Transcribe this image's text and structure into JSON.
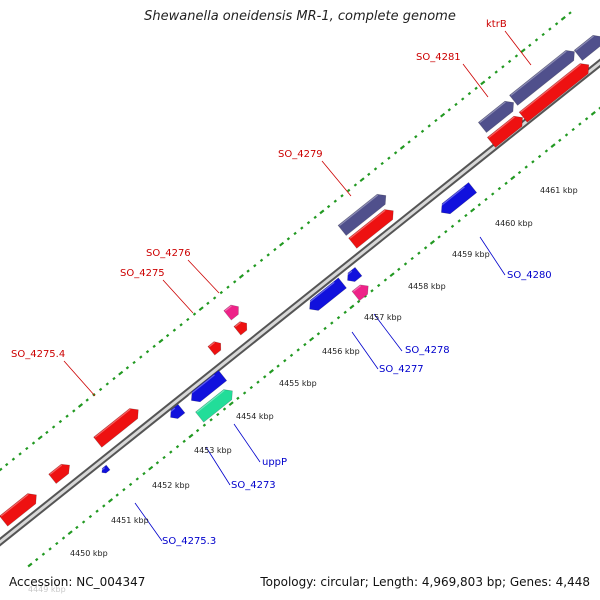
{
  "title": "Shewanella oneidensis MR-1, complete genome",
  "footer": {
    "accession": "Accession: NC_004347",
    "summary": "Topology: circular; Length: 4,969,803 bp; Genes: 4,448"
  },
  "colors": {
    "forward_gene": "#ee1111",
    "reverse_gene": "#1111dd",
    "operon": "#50508c",
    "highlight_pink": "#ee2288",
    "highlight_green": "#22dd99",
    "forward_label": "#cc0000",
    "reverse_label": "#0000cc",
    "dots": "#229922",
    "backbone": "#888888"
  },
  "axis_ticks": [
    "4449 kbp",
    "4450 kbp",
    "4451 kbp",
    "4452 kbp",
    "4453 kbp",
    "4454 kbp",
    "4455 kbp",
    "4456 kbp",
    "4457 kbp",
    "4458 kbp",
    "4459 kbp",
    "4460 kbp",
    "4461 kbp"
  ],
  "forward_labels": [
    "ktrB",
    "SO_4281",
    "SO_4279",
    "SO_4276",
    "SO_4275",
    "SO_4275.4"
  ],
  "reverse_labels": [
    "SO_4280",
    "SO_4278",
    "SO_4277",
    "uppP",
    "SO_4273",
    "SO_4275.3"
  ]
}
